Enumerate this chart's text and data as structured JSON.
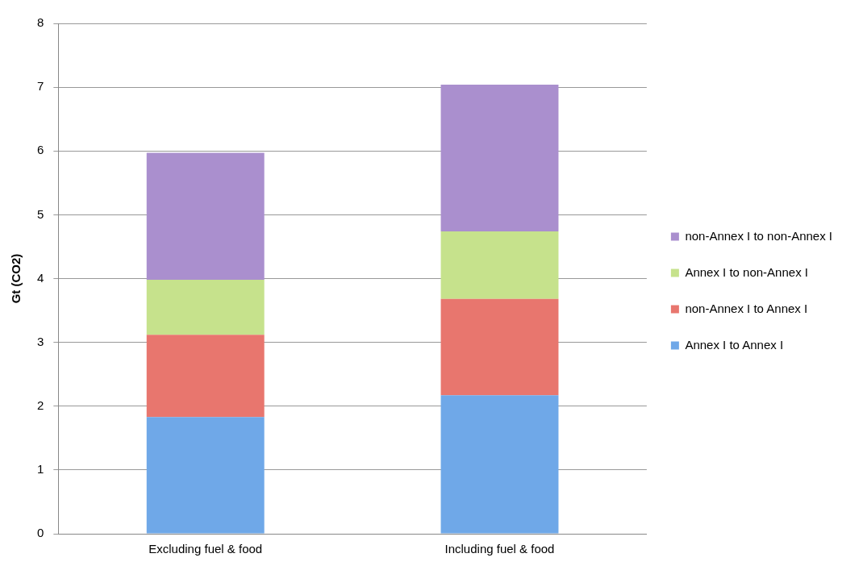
{
  "chart_data": {
    "type": "bar",
    "stacked": true,
    "ylabel": "Gt (CO2)",
    "categories": [
      "Excluding fuel & food",
      "Including fuel & food"
    ],
    "series": [
      {
        "name": "Annex I to Annex I",
        "color": "#6fa8e8",
        "values": [
          1.83,
          2.17
        ]
      },
      {
        "name": "non-Annex I to Annex I",
        "color": "#e8766e",
        "values": [
          1.29,
          1.51
        ]
      },
      {
        "name": "Annex I to non-Annex I",
        "color": "#c6e28c",
        "values": [
          0.86,
          1.06
        ]
      },
      {
        "name": "non-Annex I to non-Annex I",
        "color": "#aa8fce",
        "values": [
          1.99,
          2.3
        ]
      }
    ],
    "ylim": [
      0,
      8
    ],
    "yticks": [
      0,
      1,
      2,
      3,
      4,
      5,
      6,
      7,
      8
    ],
    "grid": "y",
    "legend": "right"
  }
}
